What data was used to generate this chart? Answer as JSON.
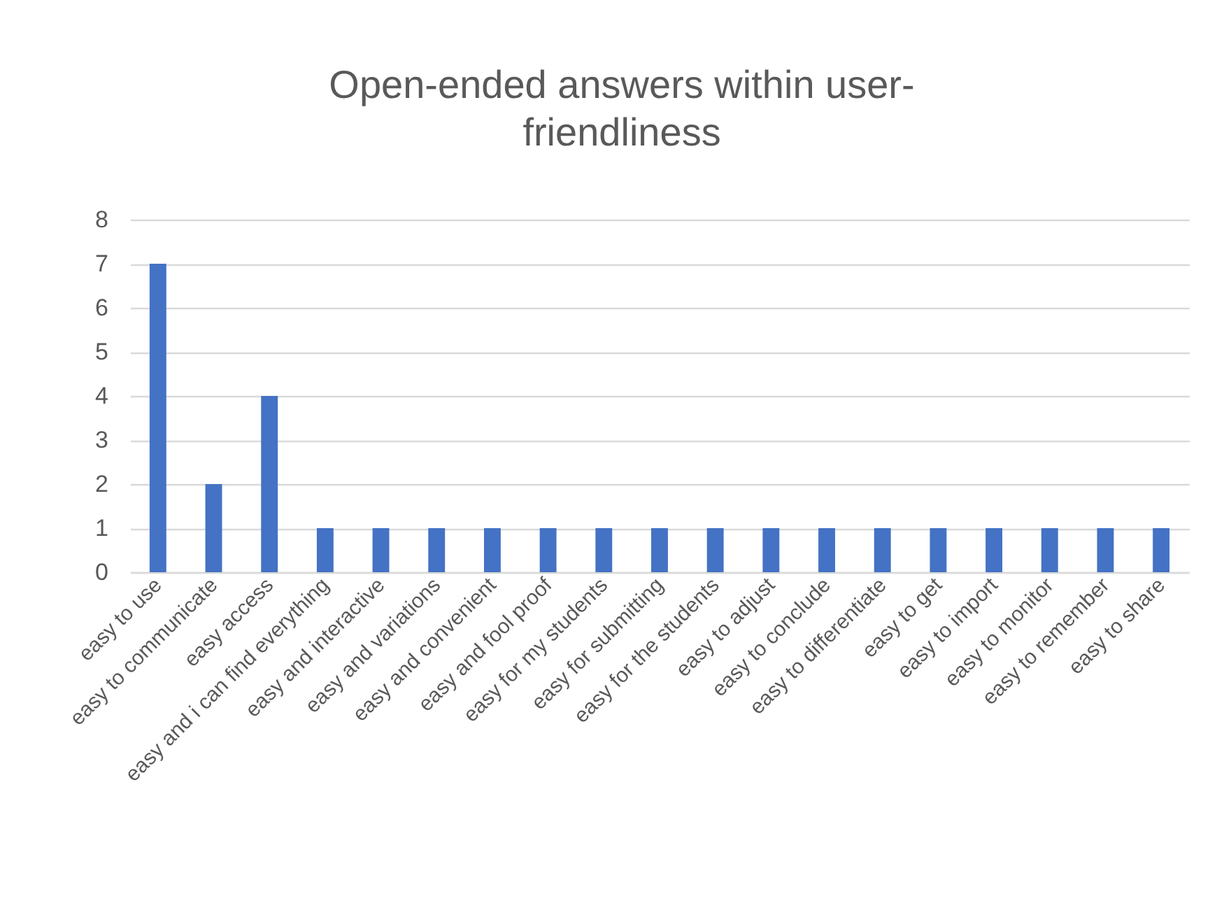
{
  "chart_data": {
    "type": "bar",
    "title": "Open-ended answers within user-friendliness",
    "categories": [
      "easy to use",
      "easy to communicate",
      "easy access",
      "easy and i can find everything",
      "easy and interactive",
      "easy and variations",
      "easy and convenient",
      "easy and fool proof",
      "easy for my students",
      "easy for submitting",
      "easy for the students",
      "easy to adjust",
      "easy to conclude",
      "easy to differentiate",
      "easy to get",
      "easy to import",
      "easy to monitor",
      "easy to remember",
      "easy to share"
    ],
    "values": [
      7,
      2,
      4,
      1,
      1,
      1,
      1,
      1,
      1,
      1,
      1,
      1,
      1,
      1,
      1,
      1,
      1,
      1,
      1
    ],
    "color": "#4472c4",
    "ylim": [
      0,
      8
    ],
    "yticks": [
      0,
      1,
      2,
      3,
      4,
      5,
      6,
      7,
      8
    ],
    "grid": "y"
  }
}
